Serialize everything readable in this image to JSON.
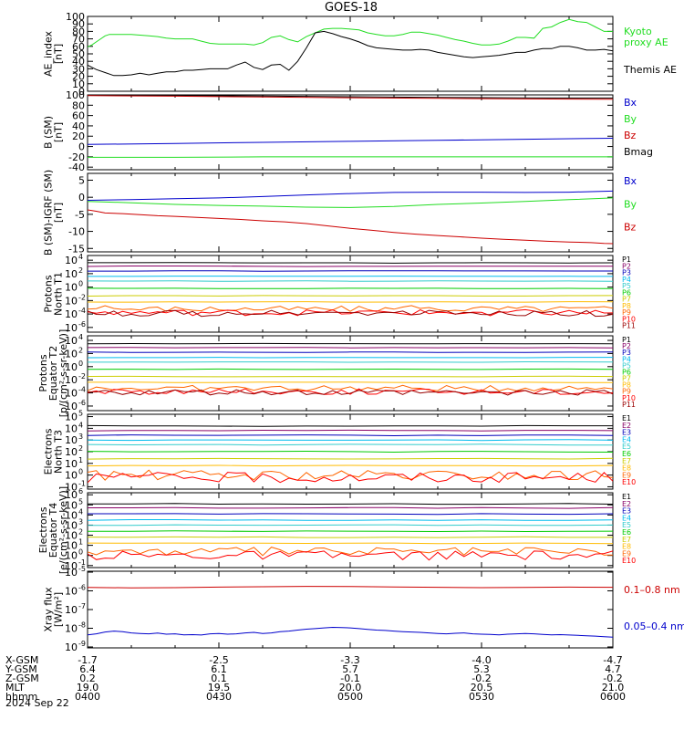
{
  "title": "GOES-18",
  "date_label": "2024 Sep 22",
  "colors": {
    "black": "#000000",
    "green": "#22dd22",
    "blue": "#0000cc",
    "red": "#cc0000",
    "P": [
      "#000000",
      "#880066",
      "#0000bb",
      "#00bbee",
      "#33cccc",
      "#00cc00",
      "#cccc00",
      "#ffbb00",
      "#ff6600",
      "#ff0000",
      "#990000"
    ],
    "E": [
      "#000000",
      "#880066",
      "#0000bb",
      "#00bbee",
      "#33cccc",
      "#00cc00",
      "#cccc00",
      "#ffbb00",
      "#ff6600",
      "#ff0000"
    ]
  },
  "ephemeris": {
    "labels": [
      "X-GSM",
      "Y-GSM",
      "Z-GSM",
      "MLT",
      "hhmm"
    ],
    "columns": [
      [
        "-1.7",
        "6.4",
        "0.2",
        "19.0",
        "0400"
      ],
      [
        "-2.5",
        "6.1",
        "0.1",
        "19.5",
        "0430"
      ],
      [
        "-3.3",
        "5.7",
        "-0.1",
        "20.0",
        "0500"
      ],
      [
        "-4.0",
        "5.3",
        "-0.2",
        "20.5",
        "0530"
      ],
      [
        "-4.7",
        "4.7",
        "-0.2",
        "21.0",
        "0600"
      ]
    ]
  },
  "chart_data": [
    {
      "type": "line",
      "ylabel": "AE_index\n[nT]",
      "ylim": [
        0,
        100
      ],
      "yticks": [
        {
          "v": 0,
          "t": "0"
        },
        {
          "v": 10,
          "t": "10"
        },
        {
          "v": 20,
          "t": "20"
        },
        {
          "v": 30,
          "t": "30"
        },
        {
          "v": 40,
          "t": "40"
        },
        {
          "v": 50,
          "t": "50"
        },
        {
          "v": 60,
          "t": "60"
        },
        {
          "v": 70,
          "t": "70"
        },
        {
          "v": 80,
          "t": "80"
        },
        {
          "v": 90,
          "t": "90"
        },
        {
          "v": 100,
          "t": "100"
        }
      ],
      "legend": [
        {
          "text": "Kyoto\nproxy AE",
          "color": "#22dd22"
        },
        {
          "text": "Themis AE",
          "color": "#000000"
        }
      ],
      "series": [
        {
          "name": "Kyoto proxy AE",
          "color": "#22dd22",
          "x": [
            0,
            1,
            2,
            3,
            4,
            5,
            6,
            8,
            10,
            12,
            14,
            16,
            18,
            20,
            22,
            24,
            26,
            28,
            30,
            32,
            34,
            36,
            38,
            40,
            42,
            44,
            46,
            48,
            50,
            52,
            54,
            56,
            58,
            60,
            62,
            64,
            66,
            68,
            70,
            72,
            74,
            76,
            78,
            80,
            82,
            84,
            86,
            88,
            90,
            92,
            94,
            96,
            98,
            100,
            102,
            104,
            106,
            108,
            110,
            112,
            114,
            116,
            118,
            120
          ],
          "y": [
            59,
            62,
            66,
            70,
            74,
            76,
            76,
            76,
            76,
            75,
            74,
            73,
            71,
            70,
            70,
            70,
            67,
            64,
            63,
            63,
            63,
            63,
            62,
            65,
            72,
            74,
            69,
            66,
            73,
            78,
            83,
            84,
            84,
            83,
            82,
            78,
            76,
            74,
            74,
            76,
            79,
            79,
            77,
            75,
            72,
            69,
            67,
            64,
            62,
            62,
            63,
            67,
            72,
            72,
            71,
            84,
            86,
            92,
            96,
            93,
            92,
            86,
            80,
            80
          ]
        },
        {
          "name": "Themis AE",
          "color": "#000000",
          "x": [
            0,
            1,
            2,
            4,
            6,
            8,
            10,
            12,
            14,
            16,
            18,
            20,
            22,
            24,
            26,
            28,
            30,
            32,
            34,
            36,
            38,
            40,
            42,
            44,
            46,
            48,
            50,
            52,
            54,
            56,
            58,
            60,
            62,
            64,
            66,
            68,
            70,
            72,
            74,
            76,
            78,
            80,
            82,
            84,
            86,
            88,
            90,
            92,
            94,
            96,
            98,
            100,
            102,
            104,
            106,
            108,
            110,
            112,
            114,
            116,
            118,
            120
          ],
          "y": [
            35,
            32,
            29,
            25,
            21,
            21,
            22,
            24,
            22,
            24,
            26,
            26,
            28,
            28,
            29,
            30,
            30,
            30,
            35,
            39,
            32,
            29,
            35,
            36,
            28,
            40,
            58,
            78,
            80,
            77,
            73,
            70,
            66,
            61,
            58,
            57,
            56,
            55,
            55,
            56,
            55,
            52,
            50,
            48,
            46,
            45,
            46,
            47,
            48,
            50,
            52,
            52,
            55,
            57,
            57,
            60,
            60,
            58,
            55,
            55,
            56,
            54
          ]
        }
      ]
    },
    {
      "type": "line",
      "ylabel": "B (SM)\n[nT]",
      "ylim": [
        -45,
        100
      ],
      "yticks": [
        {
          "v": -40,
          "t": "-40"
        },
        {
          "v": -20,
          "t": "-20"
        },
        {
          "v": 0,
          "t": "0"
        },
        {
          "v": 20,
          "t": "20"
        },
        {
          "v": 40,
          "t": "40"
        },
        {
          "v": 60,
          "t": "60"
        },
        {
          "v": 80,
          "t": "80"
        },
        {
          "v": 100,
          "t": "100"
        }
      ],
      "legend": [
        {
          "text": "Bx",
          "color": "#0000cc"
        },
        {
          "text": "By",
          "color": "#22dd22"
        },
        {
          "text": "Bz",
          "color": "#cc0000"
        },
        {
          "text": "Bmag",
          "color": "#000000"
        }
      ],
      "series": [
        {
          "name": "Bmag",
          "color": "#000000",
          "x": [
            0,
            20,
            40,
            60,
            80,
            100,
            120
          ],
          "y": [
            99.5,
            98.8,
            97.8,
            96.5,
            95.2,
            94.4,
            94.0
          ]
        },
        {
          "name": "Bz",
          "color": "#cc0000",
          "x": [
            0,
            20,
            40,
            60,
            80,
            100,
            120
          ],
          "y": [
            98.5,
            97.5,
            96.0,
            94.5,
            93.2,
            92.2,
            91.7
          ]
        },
        {
          "name": "Bx",
          "color": "#0000cc",
          "x": [
            0,
            20,
            40,
            60,
            80,
            100,
            120
          ],
          "y": [
            4,
            6,
            8,
            10,
            12,
            14,
            16
          ]
        },
        {
          "name": "By",
          "color": "#22dd22",
          "x": [
            0,
            20,
            40,
            60,
            80,
            100,
            120
          ],
          "y": [
            -21,
            -21,
            -20,
            -20,
            -20,
            -20,
            -20
          ]
        }
      ]
    },
    {
      "type": "line",
      "ylabel": "B (SM)-IGRF (SM)\n[nT]",
      "ylim": [
        -16,
        7
      ],
      "yticks": [
        {
          "v": -15,
          "t": "-15"
        },
        {
          "v": -10,
          "t": "-10"
        },
        {
          "v": -5,
          "t": "-5"
        },
        {
          "v": 0,
          "t": "0"
        },
        {
          "v": 5,
          "t": "5"
        }
      ],
      "legend": [
        {
          "text": "Bx",
          "color": "#0000cc"
        },
        {
          "text": "By",
          "color": "#22dd22"
        },
        {
          "text": "Bz",
          "color": "#cc0000"
        }
      ],
      "series": [
        {
          "name": "Bx",
          "color": "#0000cc",
          "x": [
            0,
            10,
            20,
            30,
            40,
            50,
            60,
            70,
            80,
            90,
            100,
            110,
            120
          ],
          "y": [
            -0.9,
            -0.7,
            -0.4,
            -0.2,
            0.2,
            0.7,
            1.1,
            1.4,
            1.5,
            1.5,
            1.4,
            1.5,
            1.8
          ]
        },
        {
          "name": "By",
          "color": "#22dd22",
          "x": [
            0,
            10,
            20,
            30,
            40,
            50,
            60,
            70,
            80,
            90,
            100,
            110,
            120
          ],
          "y": [
            -1.2,
            -1.6,
            -2.1,
            -2.4,
            -2.6,
            -2.9,
            -3.0,
            -2.7,
            -2.1,
            -1.7,
            -1.2,
            -0.7,
            -0.2
          ]
        },
        {
          "name": "Bz",
          "color": "#cc0000",
          "x": [
            0,
            2,
            4,
            8,
            12,
            16,
            20,
            25,
            30,
            35,
            40,
            45,
            50,
            55,
            60,
            65,
            70,
            75,
            80,
            85,
            90,
            95,
            100,
            105,
            110,
            115,
            118,
            120
          ],
          "y": [
            -3.7,
            -4.1,
            -4.6,
            -4.8,
            -5.1,
            -5.4,
            -5.6,
            -5.9,
            -6.2,
            -6.5,
            -6.9,
            -7.2,
            -7.7,
            -8.4,
            -9.1,
            -9.7,
            -10.3,
            -10.8,
            -11.2,
            -11.6,
            -12.0,
            -12.3,
            -12.6,
            -12.9,
            -13.1,
            -13.3,
            -13.5,
            -13.6
          ]
        }
      ]
    },
    {
      "type": "line",
      "log": true,
      "ylabel": "Protons\nNorth T1",
      "ylim": [
        -6.7,
        4.7
      ],
      "yticks": [
        {
          "v": 4,
          "t": "10",
          "e": "4"
        },
        {
          "v": 2,
          "t": "10",
          "e": "2"
        },
        {
          "v": 0,
          "t": "10",
          "e": "0"
        },
        {
          "v": -2,
          "t": "10",
          "e": "-2"
        },
        {
          "v": -4,
          "t": "10",
          "e": "-4"
        },
        {
          "v": -6,
          "t": "10",
          "e": "-6"
        }
      ],
      "channels": [
        "P1",
        "P2",
        "P3",
        "P4",
        "P5",
        "P6",
        "P7",
        "P8",
        "P9",
        "P10",
        "P11"
      ],
      "levels": [
        3.6,
        3.1,
        2.4,
        1.6,
        0.9,
        -0.2,
        -1.3,
        -2.2,
        -3.2,
        -3.8,
        -3.9
      ],
      "noisy_from": 8
    },
    {
      "type": "line",
      "log": true,
      "ylabel": "Protons\nEquator T2\n[p/(cm²-s-sr-keV)]",
      "ylim": [
        -6.7,
        4.7
      ],
      "yticks": [
        {
          "v": 4,
          "t": "10",
          "e": "4"
        },
        {
          "v": 2,
          "t": "10",
          "e": "2"
        },
        {
          "v": 0,
          "t": "10",
          "e": "0"
        },
        {
          "v": -2,
          "t": "10",
          "e": "-2"
        },
        {
          "v": -4,
          "t": "10",
          "e": "-4"
        },
        {
          "v": -6,
          "t": "10",
          "e": "-6"
        }
      ],
      "channels": [
        "P1",
        "P2",
        "P3",
        "P4",
        "P5",
        "P6",
        "P7",
        "P8",
        "P9",
        "P10",
        "P11"
      ],
      "levels": [
        3.5,
        2.9,
        2.2,
        1.4,
        0.7,
        -0.4,
        -1.5,
        -2.4,
        -3.3,
        -3.8,
        -3.9
      ],
      "noisy_from": 8
    },
    {
      "type": "line",
      "log": true,
      "ylabel": "Electrons\nNorth T3",
      "ylim": [
        -1.2,
        5.2
      ],
      "yticks": [
        {
          "v": 5,
          "t": "10",
          "e": "5"
        },
        {
          "v": 4,
          "t": "10",
          "e": "4"
        },
        {
          "v": 3,
          "t": "10",
          "e": "3"
        },
        {
          "v": 2,
          "t": "10",
          "e": "2"
        },
        {
          "v": 1,
          "t": "10",
          "e": "1"
        },
        {
          "v": 0,
          "t": "10",
          "e": "0"
        },
        {
          "v": -1,
          "t": "10",
          "e": "-1"
        }
      ],
      "channels": [
        "E1",
        "E2",
        "E3",
        "E4",
        "E5",
        "E6",
        "E7",
        "E8",
        "E9",
        "E10"
      ],
      "levels": [
        4.2,
        3.8,
        3.4,
        3.0,
        2.6,
        2.0,
        1.4,
        0.8,
        0.0,
        -0.2
      ],
      "noisy_from": 8
    },
    {
      "type": "line",
      "log": true,
      "ylabel": "Electrons\nEquator T4\n[e/(cm²-s-sr-keV)]",
      "ylim": [
        -1.2,
        6.2
      ],
      "yticks": [
        {
          "v": 6,
          "t": "10",
          "e": "6"
        },
        {
          "v": 5,
          "t": "10",
          "e": "5"
        },
        {
          "v": 4,
          "t": "10",
          "e": "4"
        },
        {
          "v": 3,
          "t": "10",
          "e": "3"
        },
        {
          "v": 2,
          "t": "10",
          "e": "2"
        },
        {
          "v": 1,
          "t": "10",
          "e": "1"
        },
        {
          "v": 0,
          "t": "10",
          "e": "0"
        },
        {
          "v": -1,
          "t": "10",
          "e": "-1"
        }
      ],
      "channels": [
        "E1",
        "E2",
        "E3",
        "E4",
        "E5",
        "E6",
        "E7",
        "E8",
        "E9",
        "E10"
      ],
      "levels": [
        5.1,
        4.7,
        4.1,
        3.5,
        3.0,
        2.4,
        1.8,
        1.2,
        0.4,
        0.0
      ],
      "noisy_from": 8
    },
    {
      "type": "line",
      "log": true,
      "ylabel": "Xray flux\n[W/m²]",
      "ylim": [
        -9.05,
        -4.95
      ],
      "yticks": [
        {
          "v": -5,
          "t": "10",
          "e": "-5"
        },
        {
          "v": -6,
          "t": "10",
          "e": "-6"
        },
        {
          "v": -7,
          "t": "10",
          "e": "-7"
        },
        {
          "v": -8,
          "t": "10",
          "e": "-8"
        },
        {
          "v": -9,
          "t": "10",
          "e": "-9"
        }
      ],
      "legend": [
        {
          "text": "0.1–0.8 nm",
          "color": "#cc0000"
        },
        {
          "text": "0.05–0.4 nm",
          "color": "#0000cc"
        }
      ],
      "series": [
        {
          "name": "0.1–0.8 nm",
          "color": "#cc0000",
          "x": [
            0,
            10,
            20,
            30,
            40,
            50,
            60,
            70,
            80,
            90,
            100,
            110,
            120
          ],
          "y": [
            -5.82,
            -5.84,
            -5.83,
            -5.8,
            -5.78,
            -5.76,
            -5.77,
            -5.79,
            -5.81,
            -5.83,
            -5.82,
            -5.8,
            -5.81
          ]
        },
        {
          "name": "0.05–0.4 nm",
          "color": "#0000cc",
          "x": [
            0,
            2,
            4,
            6,
            8,
            10,
            12,
            14,
            16,
            18,
            20,
            22,
            24,
            26,
            28,
            30,
            32,
            34,
            36,
            38,
            40,
            42,
            44,
            46,
            48,
            50,
            52,
            54,
            56,
            58,
            60,
            62,
            64,
            66,
            68,
            70,
            72,
            74,
            76,
            78,
            80,
            82,
            84,
            86,
            88,
            90,
            92,
            94,
            96,
            98,
            100,
            102,
            104,
            106,
            108,
            110,
            112,
            114,
            116,
            118,
            120
          ],
          "y": [
            -8.35,
            -8.3,
            -8.2,
            -8.15,
            -8.18,
            -8.25,
            -8.28,
            -8.3,
            -8.26,
            -8.32,
            -8.3,
            -8.35,
            -8.34,
            -8.36,
            -8.3,
            -8.28,
            -8.32,
            -8.3,
            -8.25,
            -8.22,
            -8.28,
            -8.25,
            -8.18,
            -8.15,
            -8.1,
            -8.05,
            -8.02,
            -7.98,
            -7.95,
            -7.96,
            -7.98,
            -8.02,
            -8.06,
            -8.1,
            -8.12,
            -8.15,
            -8.18,
            -8.2,
            -8.22,
            -8.25,
            -8.28,
            -8.3,
            -8.27,
            -8.25,
            -8.3,
            -8.32,
            -8.33,
            -8.35,
            -8.32,
            -8.3,
            -8.28,
            -8.3,
            -8.33,
            -8.35,
            -8.34,
            -8.36,
            -8.38,
            -8.4,
            -8.42,
            -8.45,
            -8.48
          ]
        }
      ]
    }
  ]
}
